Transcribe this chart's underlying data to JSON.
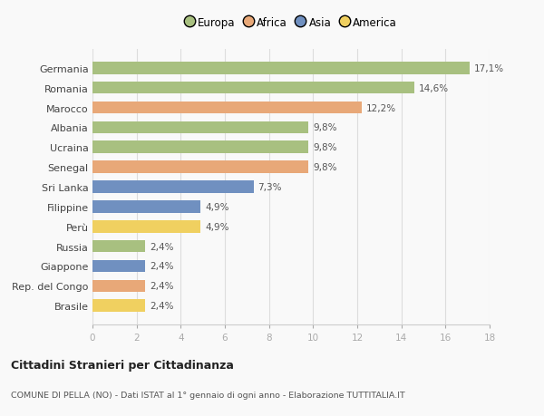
{
  "categories": [
    "Germania",
    "Romania",
    "Marocco",
    "Albania",
    "Ucraina",
    "Senegal",
    "Sri Lanka",
    "Filippine",
    "Perù",
    "Russia",
    "Giappone",
    "Rep. del Congo",
    "Brasile"
  ],
  "values": [
    17.1,
    14.6,
    12.2,
    9.8,
    9.8,
    9.8,
    7.3,
    4.9,
    4.9,
    2.4,
    2.4,
    2.4,
    2.4
  ],
  "labels": [
    "17,1%",
    "14,6%",
    "12,2%",
    "9,8%",
    "9,8%",
    "9,8%",
    "7,3%",
    "4,9%",
    "4,9%",
    "2,4%",
    "2,4%",
    "2,4%",
    "2,4%"
  ],
  "continents": [
    "Europa",
    "Europa",
    "Africa",
    "Europa",
    "Europa",
    "Africa",
    "Asia",
    "Asia",
    "America",
    "Europa",
    "Asia",
    "Africa",
    "America"
  ],
  "colors": {
    "Europa": "#a8c080",
    "Africa": "#e8a878",
    "Asia": "#7090c0",
    "America": "#f0d060"
  },
  "legend_order": [
    "Europa",
    "Africa",
    "Asia",
    "America"
  ],
  "xlim": [
    0,
    18
  ],
  "xticks": [
    0,
    2,
    4,
    6,
    8,
    10,
    12,
    14,
    16,
    18
  ],
  "title": "Cittadini Stranieri per Cittadinanza",
  "subtitle": "COMUNE DI PELLA (NO) - Dati ISTAT al 1° gennaio di ogni anno - Elaborazione TUTTITALIA.IT",
  "bg_color": "#f9f9f9",
  "grid_color": "#dddddd",
  "bar_height": 0.62
}
